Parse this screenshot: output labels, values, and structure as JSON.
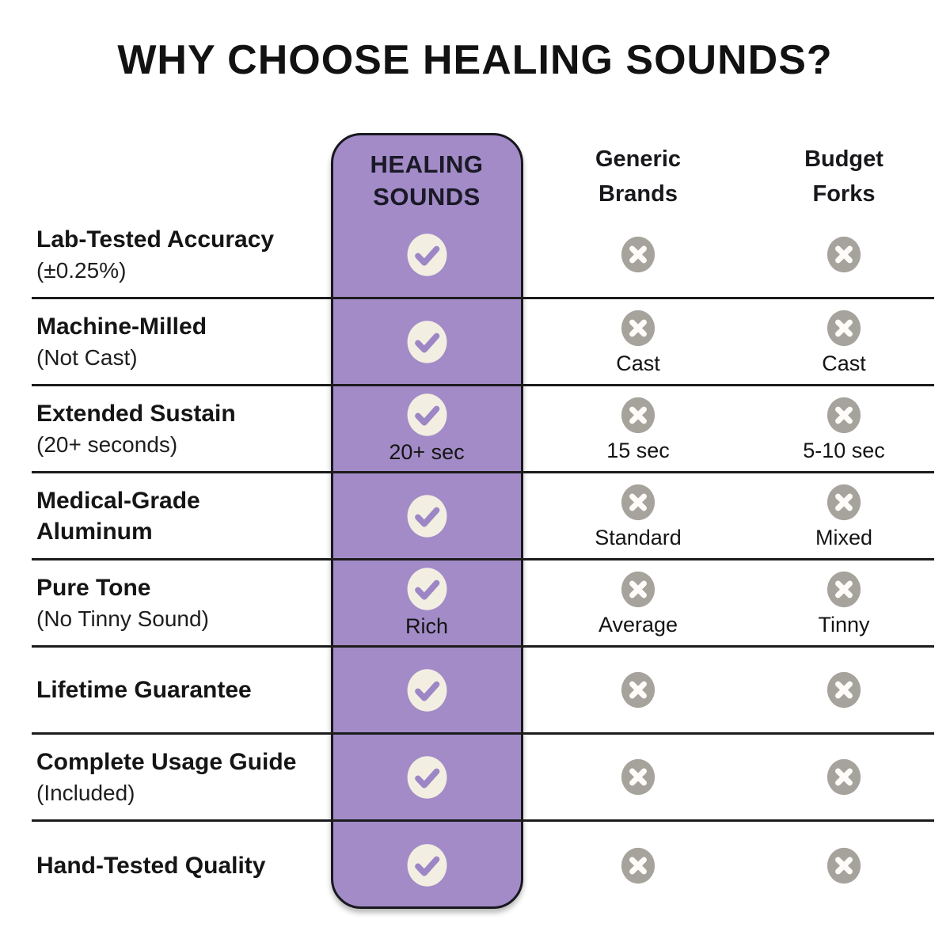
{
  "title": "WHY CHOOSE HEALING SOUNDS?",
  "columns": [
    {
      "id": "healing",
      "label": "HEALING SOUNDS",
      "highlight": true
    },
    {
      "id": "generic",
      "label": "Generic Brands",
      "highlight": false
    },
    {
      "id": "budget",
      "label": "Budget Forks",
      "highlight": false
    }
  ],
  "rows": [
    {
      "feature": "Lab-Tested Accuracy",
      "note": "(±0.25%)",
      "cells": [
        {
          "icon": "check",
          "label": ""
        },
        {
          "icon": "x",
          "label": ""
        },
        {
          "icon": "x",
          "label": ""
        }
      ]
    },
    {
      "feature": "Machine-Milled",
      "note": "(Not Cast)",
      "cells": [
        {
          "icon": "check",
          "label": ""
        },
        {
          "icon": "x",
          "label": "Cast"
        },
        {
          "icon": "x",
          "label": "Cast"
        }
      ]
    },
    {
      "feature": "Extended Sustain",
      "note": "(20+ seconds)",
      "cells": [
        {
          "icon": "check",
          "label": "20+ sec"
        },
        {
          "icon": "x",
          "label": "15 sec"
        },
        {
          "icon": "x",
          "label": "5-10 sec"
        }
      ]
    },
    {
      "feature": "Medical-Grade Aluminum",
      "note": "",
      "cells": [
        {
          "icon": "check",
          "label": ""
        },
        {
          "icon": "x",
          "label": "Standard"
        },
        {
          "icon": "x",
          "label": "Mixed"
        }
      ]
    },
    {
      "feature": "Pure Tone",
      "note": "(No Tinny Sound)",
      "cells": [
        {
          "icon": "check",
          "label": "Rich"
        },
        {
          "icon": "x",
          "label": "Average"
        },
        {
          "icon": "x",
          "label": "Tinny"
        }
      ]
    },
    {
      "feature": "Lifetime Guarantee",
      "note": "",
      "cells": [
        {
          "icon": "check",
          "label": ""
        },
        {
          "icon": "x",
          "label": ""
        },
        {
          "icon": "x",
          "label": ""
        }
      ]
    },
    {
      "feature": "Complete Usage Guide",
      "note": "(Included)",
      "cells": [
        {
          "icon": "check",
          "label": ""
        },
        {
          "icon": "x",
          "label": ""
        },
        {
          "icon": "x",
          "label": ""
        }
      ]
    },
    {
      "feature": "Hand-Tested Quality",
      "note": "",
      "cells": [
        {
          "icon": "check",
          "label": ""
        },
        {
          "icon": "x",
          "label": ""
        },
        {
          "icon": "x",
          "label": ""
        }
      ]
    }
  ],
  "colors": {
    "highlight_column_bg": "#a28bc7",
    "highlight_column_border": "#18181f",
    "check_circle_fill": "#f2efe2",
    "check_mark": "#9d86c5",
    "x_circle_fill": "#a6a39c",
    "x_mark": "#fdfcf8",
    "separator_line": "#1c1c1c",
    "text": "#151515",
    "background": "#ffffff"
  }
}
